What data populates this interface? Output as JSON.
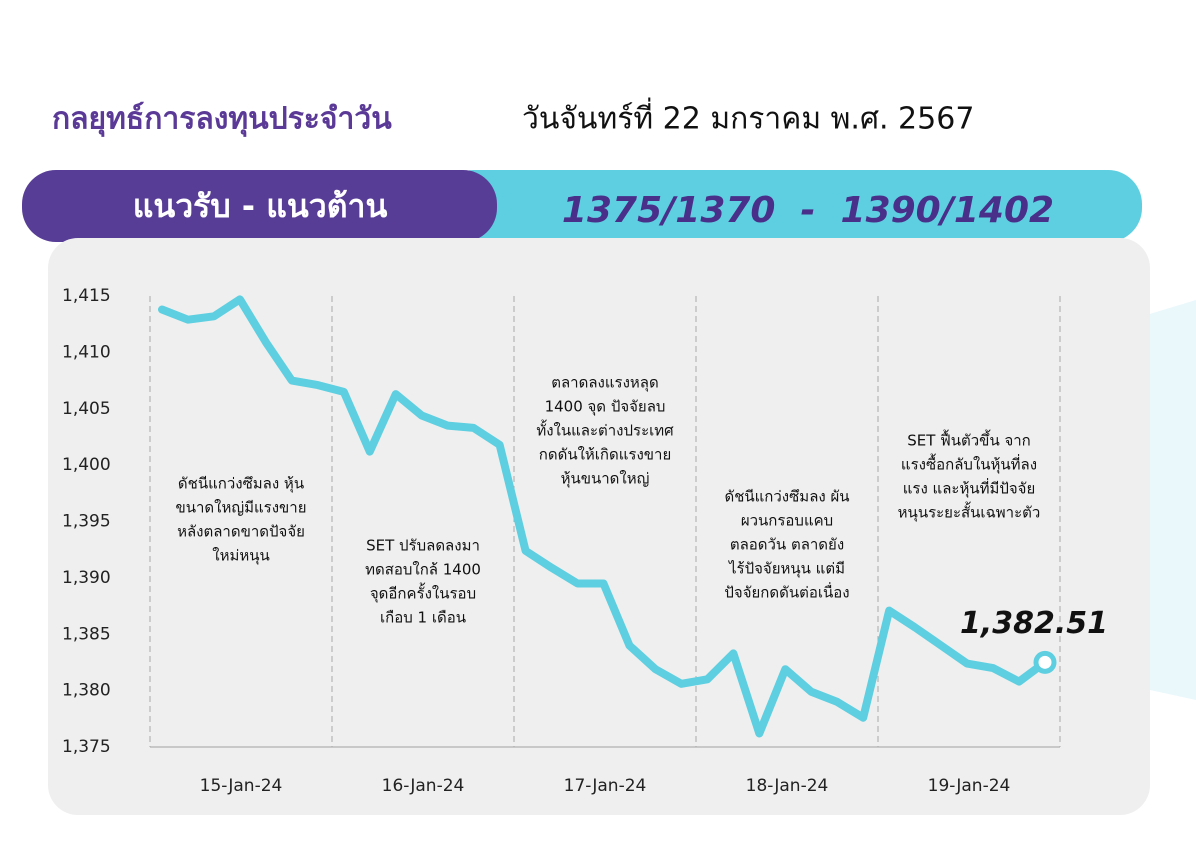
{
  "header": {
    "title": "กลยุทธ์การลงทุนประจำวัน",
    "date": "วันจันทร์ที่ 22 มกราคม พ.ศ. 2567"
  },
  "banner": {
    "label": "แนวรับ - แนวต้าน",
    "levels": "1375/1370  -  1390/1402"
  },
  "chart_data": {
    "type": "line",
    "color": "#5ecfe0",
    "values": [
      1413.8,
      1412.9,
      1413.2,
      1414.7,
      1410.9,
      1407.5,
      1407.1,
      1406.5,
      1401.2,
      1406.3,
      1404.4,
      1403.5,
      1403.3,
      1401.8,
      1392.4,
      1390.9,
      1389.5,
      1389.5,
      1384.0,
      1381.9,
      1380.6,
      1381.0,
      1383.3,
      1376.2,
      1381.9,
      1379.9,
      1379.0,
      1377.6,
      1387.1,
      1385.6,
      1384.0,
      1382.4,
      1382.0,
      1380.8,
      1382.51
    ],
    "last_value_label": "1,382.51",
    "day_labels": [
      "15-Jan-24",
      "16-Jan-24",
      "17-Jan-24",
      "18-Jan-24",
      "19-Jan-24"
    ],
    "ylim": [
      1375,
      1415
    ],
    "yticks": [
      {
        "value": 1375,
        "label": "1,375"
      },
      {
        "value": 1380,
        "label": "1,380"
      },
      {
        "value": 1385,
        "label": "1,385"
      },
      {
        "value": 1390,
        "label": "1,390"
      },
      {
        "value": 1395,
        "label": "1,395"
      },
      {
        "value": 1400,
        "label": "1,400"
      },
      {
        "value": 1405,
        "label": "1,405"
      },
      {
        "value": 1410,
        "label": "1,410"
      },
      {
        "value": 1415,
        "label": "1,415"
      }
    ],
    "annotations": [
      [
        "ดัชนีแกว่งซึมลง หุ้น",
        "ขนาดใหญ่มีแรงขาย",
        "หลังตลาดขาดปัจจัย",
        "ใหม่หนุน"
      ],
      [
        "SET ปรับลดลงมา",
        "ทดสอบใกล้ 1400",
        "จุดอีกครั้งในรอบ",
        "เกือบ 1 เดือน"
      ],
      [
        "ตลาดลงแรงหลุด",
        "1400 จุด ปัจจัยลบ",
        "ทั้งในและต่างประเทศ",
        "กดดันให้เกิดแรงขาย",
        "หุ้นขนาดใหญ่"
      ],
      [
        "ดัชนีแกว่งซึมลง ผัน",
        "ผวนกรอบแคบ",
        "ตลอดวัน ตลาดยัง",
        "ไร้ปัจจัยหนุน แต่มี",
        "ปัจจัยกดดันต่อเนื่อง"
      ],
      [
        "SET ฟื้นตัวขึ้น จาก",
        "แรงซื้อกลับในหุ้นที่ลง",
        "แรง และหุ้นที่มีปัจจัย",
        "หนุนระยะสั้นเฉพาะตัว"
      ]
    ]
  }
}
